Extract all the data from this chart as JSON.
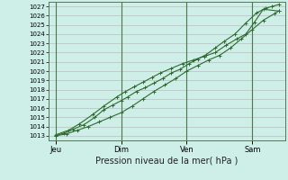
{
  "title": "Pression niveau de la mer( hPa )",
  "bg_color": "#ceeee8",
  "grid_color": "#c0aab8",
  "line_color": "#2d6b2d",
  "vline_color": "#4a7a4a",
  "ylim": [
    1012.5,
    1027.5
  ],
  "yticks": [
    1013,
    1014,
    1015,
    1016,
    1017,
    1018,
    1019,
    1020,
    1021,
    1022,
    1023,
    1024,
    1025,
    1026,
    1027
  ],
  "xtick_labels": [
    "Jeu",
    "Dim",
    "Ven",
    "Sam"
  ],
  "xtick_positions": [
    0,
    3.0,
    6.0,
    9.0
  ],
  "xlim": [
    -0.3,
    10.5
  ],
  "line1_x": [
    0.0,
    0.4,
    0.8,
    1.3,
    1.8,
    2.2,
    2.6,
    3.0,
    3.3,
    3.7,
    4.1,
    4.5,
    4.9,
    5.3,
    5.7,
    6.1,
    6.5,
    6.9,
    7.3,
    7.7,
    8.2,
    8.7,
    9.2,
    9.6,
    9.9,
    10.2
  ],
  "line1_y": [
    1013.0,
    1013.3,
    1013.7,
    1014.2,
    1015.0,
    1015.8,
    1016.3,
    1016.8,
    1017.2,
    1017.8,
    1018.2,
    1018.7,
    1019.2,
    1019.8,
    1020.2,
    1020.8,
    1021.3,
    1021.8,
    1022.5,
    1023.2,
    1024.0,
    1025.2,
    1026.3,
    1026.8,
    1027.0,
    1027.2
  ],
  "line2_x": [
    0.0,
    0.5,
    1.0,
    1.5,
    2.0,
    2.5,
    3.0,
    3.5,
    4.0,
    4.5,
    5.0,
    5.5,
    6.0,
    6.5,
    7.0,
    7.5,
    8.0,
    8.5,
    9.0,
    9.5,
    10.0,
    10.2
  ],
  "line2_y": [
    1013.0,
    1013.2,
    1013.6,
    1014.0,
    1014.5,
    1015.0,
    1015.5,
    1016.2,
    1017.0,
    1017.8,
    1018.5,
    1019.2,
    1020.0,
    1020.6,
    1021.2,
    1021.7,
    1022.5,
    1023.5,
    1024.5,
    1025.5,
    1026.2,
    1026.5
  ],
  "line3_x": [
    0.0,
    0.6,
    1.1,
    1.7,
    2.2,
    2.8,
    3.2,
    3.6,
    4.0,
    4.4,
    4.8,
    5.3,
    5.8,
    6.3,
    6.8,
    7.3,
    7.8,
    8.3,
    8.7,
    9.1,
    9.5,
    10.2
  ],
  "line3_y": [
    1013.1,
    1013.6,
    1014.3,
    1015.3,
    1016.2,
    1017.2,
    1017.8,
    1018.3,
    1018.8,
    1019.3,
    1019.8,
    1020.3,
    1020.8,
    1021.2,
    1021.6,
    1022.0,
    1022.8,
    1023.5,
    1024.0,
    1025.3,
    1026.7,
    1026.5
  ],
  "ylabel_fontsize": 5,
  "xlabel_fontsize": 7,
  "xtick_fontsize": 6,
  "lw": 0.8,
  "ms": 2.5
}
